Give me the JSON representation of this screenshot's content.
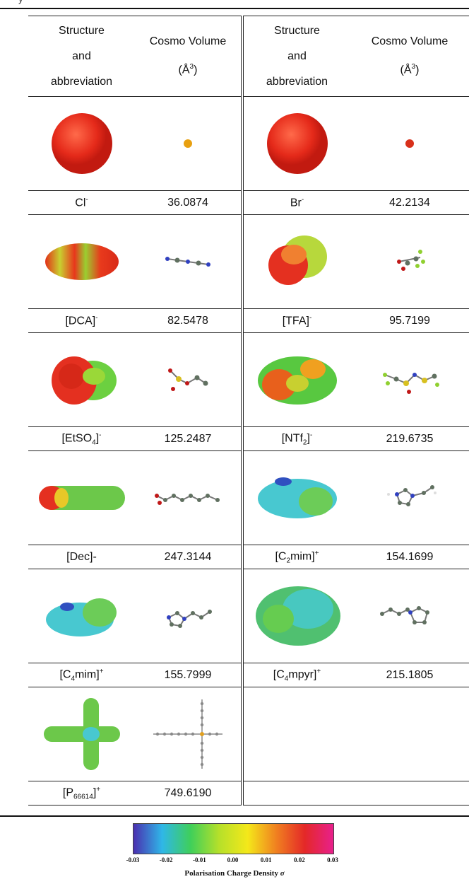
{
  "page": {
    "header_fragment": "y"
  },
  "table": {
    "headers": {
      "left_structure": [
        "Structure",
        "and",
        "abbreviation"
      ],
      "left_volume": [
        "Cosmo Volume",
        "(Å",
        "3",
        ")"
      ],
      "right_structure": [
        "Structure",
        "and",
        "abbreviation"
      ],
      "right_volume": [
        "Cosmo Volume",
        "(Å",
        "3",
        ")"
      ]
    },
    "rows": [
      {
        "left": {
          "name": "Cl",
          "sup": "-",
          "volume": "36.0874",
          "surface_icon": "chloride-sphere",
          "model_icon": "chloride-ball"
        },
        "right": {
          "name": "Br",
          "sup": "-",
          "volume": "42.2134",
          "surface_icon": "bromide-sphere",
          "model_icon": "bromide-ball"
        }
      },
      {
        "left": {
          "name": "[DCA]",
          "sup": "-",
          "volume": "82.5478",
          "surface_icon": "dca-surface",
          "model_icon": "dca-molecule"
        },
        "right": {
          "name": "[TFA]",
          "sup": "-",
          "volume": "95.7199",
          "surface_icon": "tfa-surface",
          "model_icon": "tfa-molecule"
        }
      },
      {
        "left": {
          "pre": "[EtSO",
          "sub": "4",
          "post": "]",
          "sup": "-",
          "volume": "125.2487",
          "surface_icon": "etso4-surface",
          "model_icon": "etso4-molecule"
        },
        "right": {
          "pre": "[NTf",
          "sub": "2",
          "post": "]",
          "sup": "-",
          "volume": "219.6735",
          "surface_icon": "ntf2-surface",
          "model_icon": "ntf2-molecule"
        }
      },
      {
        "left": {
          "name": "[Dec]-",
          "volume": "247.3144",
          "surface_icon": "dec-surface",
          "model_icon": "dec-molecule"
        },
        "right": {
          "pre": "[C",
          "sub": "2",
          "post": "mim]",
          "sup": "+",
          "volume": "154.1699",
          "surface_icon": "c2mim-surface",
          "model_icon": "c2mim-molecule"
        }
      },
      {
        "left": {
          "pre": "[C",
          "sub": "4",
          "post": "mim]",
          "sup": "+",
          "volume": "155.7999",
          "surface_icon": "c4mim-surface",
          "model_icon": "c4mim-molecule"
        },
        "right": {
          "pre": "[C",
          "sub": "4",
          "post": "mpyr]",
          "sup": "+",
          "volume": "215.1805",
          "surface_icon": "c4mpyr-surface",
          "model_icon": "c4mpyr-molecule"
        }
      },
      {
        "left": {
          "pre": "[P",
          "sub": "66614",
          "post": "]",
          "sup": "+",
          "volume": "749.6190",
          "surface_icon": "p66614-surface",
          "model_icon": "p66614-molecule"
        }
      }
    ]
  },
  "colorbar": {
    "ticks": [
      "-0.03",
      "-0.02",
      "-0.01",
      "0.00",
      "0.01",
      "0.02",
      "0.03"
    ],
    "caption": "Polarisation Charge Density",
    "symbol": "σ",
    "colors": [
      "#4a2fb0",
      "#2fb7e8",
      "#3fcf5a",
      "#b6e02a",
      "#f4e81a",
      "#f08020",
      "#e42828",
      "#e8208c"
    ]
  }
}
